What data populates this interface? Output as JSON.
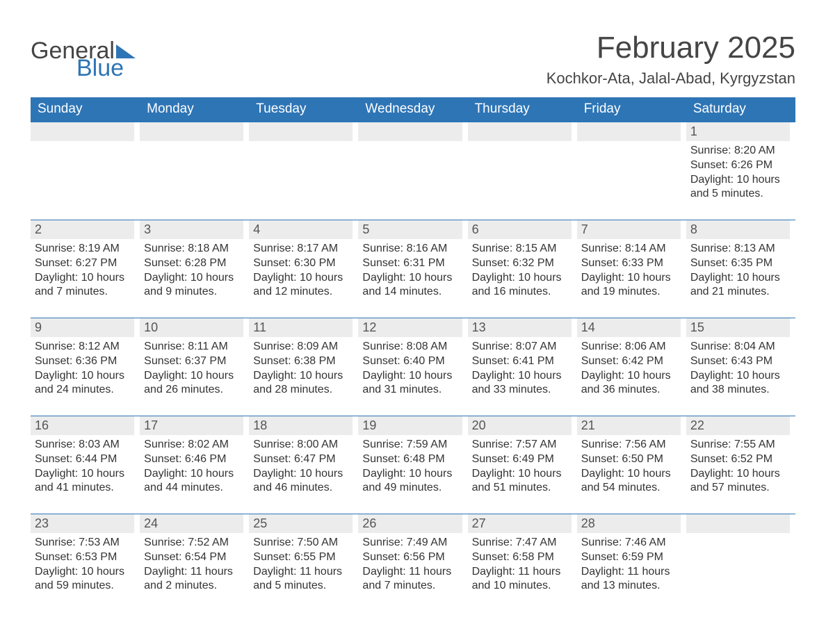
{
  "logo": {
    "general": "General",
    "blue": "Blue",
    "accent_color": "#2e75b6"
  },
  "title": "February 2025",
  "subtitle": "Kochkor-Ata, Jalal-Abad, Kyrgyzstan",
  "colors": {
    "header_bg": "#2e75b6",
    "header_text": "#ffffff",
    "daynum_bg": "#ececec",
    "text": "#333333",
    "rule": "#2e75b6",
    "background": "#ffffff"
  },
  "weekdays": [
    "Sunday",
    "Monday",
    "Tuesday",
    "Wednesday",
    "Thursday",
    "Friday",
    "Saturday"
  ],
  "labels": {
    "sunrise": "Sunrise:",
    "sunset": "Sunset:",
    "daylight": "Daylight:"
  },
  "weeks": [
    [
      null,
      null,
      null,
      null,
      null,
      null,
      {
        "n": "1",
        "sunrise": "8:20 AM",
        "sunset": "6:26 PM",
        "daylight": "10 hours and 5 minutes."
      }
    ],
    [
      {
        "n": "2",
        "sunrise": "8:19 AM",
        "sunset": "6:27 PM",
        "daylight": "10 hours and 7 minutes."
      },
      {
        "n": "3",
        "sunrise": "8:18 AM",
        "sunset": "6:28 PM",
        "daylight": "10 hours and 9 minutes."
      },
      {
        "n": "4",
        "sunrise": "8:17 AM",
        "sunset": "6:30 PM",
        "daylight": "10 hours and 12 minutes."
      },
      {
        "n": "5",
        "sunrise": "8:16 AM",
        "sunset": "6:31 PM",
        "daylight": "10 hours and 14 minutes."
      },
      {
        "n": "6",
        "sunrise": "8:15 AM",
        "sunset": "6:32 PM",
        "daylight": "10 hours and 16 minutes."
      },
      {
        "n": "7",
        "sunrise": "8:14 AM",
        "sunset": "6:33 PM",
        "daylight": "10 hours and 19 minutes."
      },
      {
        "n": "8",
        "sunrise": "8:13 AM",
        "sunset": "6:35 PM",
        "daylight": "10 hours and 21 minutes."
      }
    ],
    [
      {
        "n": "9",
        "sunrise": "8:12 AM",
        "sunset": "6:36 PM",
        "daylight": "10 hours and 24 minutes."
      },
      {
        "n": "10",
        "sunrise": "8:11 AM",
        "sunset": "6:37 PM",
        "daylight": "10 hours and 26 minutes."
      },
      {
        "n": "11",
        "sunrise": "8:09 AM",
        "sunset": "6:38 PM",
        "daylight": "10 hours and 28 minutes."
      },
      {
        "n": "12",
        "sunrise": "8:08 AM",
        "sunset": "6:40 PM",
        "daylight": "10 hours and 31 minutes."
      },
      {
        "n": "13",
        "sunrise": "8:07 AM",
        "sunset": "6:41 PM",
        "daylight": "10 hours and 33 minutes."
      },
      {
        "n": "14",
        "sunrise": "8:06 AM",
        "sunset": "6:42 PM",
        "daylight": "10 hours and 36 minutes."
      },
      {
        "n": "15",
        "sunrise": "8:04 AM",
        "sunset": "6:43 PM",
        "daylight": "10 hours and 38 minutes."
      }
    ],
    [
      {
        "n": "16",
        "sunrise": "8:03 AM",
        "sunset": "6:44 PM",
        "daylight": "10 hours and 41 minutes."
      },
      {
        "n": "17",
        "sunrise": "8:02 AM",
        "sunset": "6:46 PM",
        "daylight": "10 hours and 44 minutes."
      },
      {
        "n": "18",
        "sunrise": "8:00 AM",
        "sunset": "6:47 PM",
        "daylight": "10 hours and 46 minutes."
      },
      {
        "n": "19",
        "sunrise": "7:59 AM",
        "sunset": "6:48 PM",
        "daylight": "10 hours and 49 minutes."
      },
      {
        "n": "20",
        "sunrise": "7:57 AM",
        "sunset": "6:49 PM",
        "daylight": "10 hours and 51 minutes."
      },
      {
        "n": "21",
        "sunrise": "7:56 AM",
        "sunset": "6:50 PM",
        "daylight": "10 hours and 54 minutes."
      },
      {
        "n": "22",
        "sunrise": "7:55 AM",
        "sunset": "6:52 PM",
        "daylight": "10 hours and 57 minutes."
      }
    ],
    [
      {
        "n": "23",
        "sunrise": "7:53 AM",
        "sunset": "6:53 PM",
        "daylight": "10 hours and 59 minutes."
      },
      {
        "n": "24",
        "sunrise": "7:52 AM",
        "sunset": "6:54 PM",
        "daylight": "11 hours and 2 minutes."
      },
      {
        "n": "25",
        "sunrise": "7:50 AM",
        "sunset": "6:55 PM",
        "daylight": "11 hours and 5 minutes."
      },
      {
        "n": "26",
        "sunrise": "7:49 AM",
        "sunset": "6:56 PM",
        "daylight": "11 hours and 7 minutes."
      },
      {
        "n": "27",
        "sunrise": "7:47 AM",
        "sunset": "6:58 PM",
        "daylight": "11 hours and 10 minutes."
      },
      {
        "n": "28",
        "sunrise": "7:46 AM",
        "sunset": "6:59 PM",
        "daylight": "11 hours and 13 minutes."
      },
      null
    ]
  ]
}
